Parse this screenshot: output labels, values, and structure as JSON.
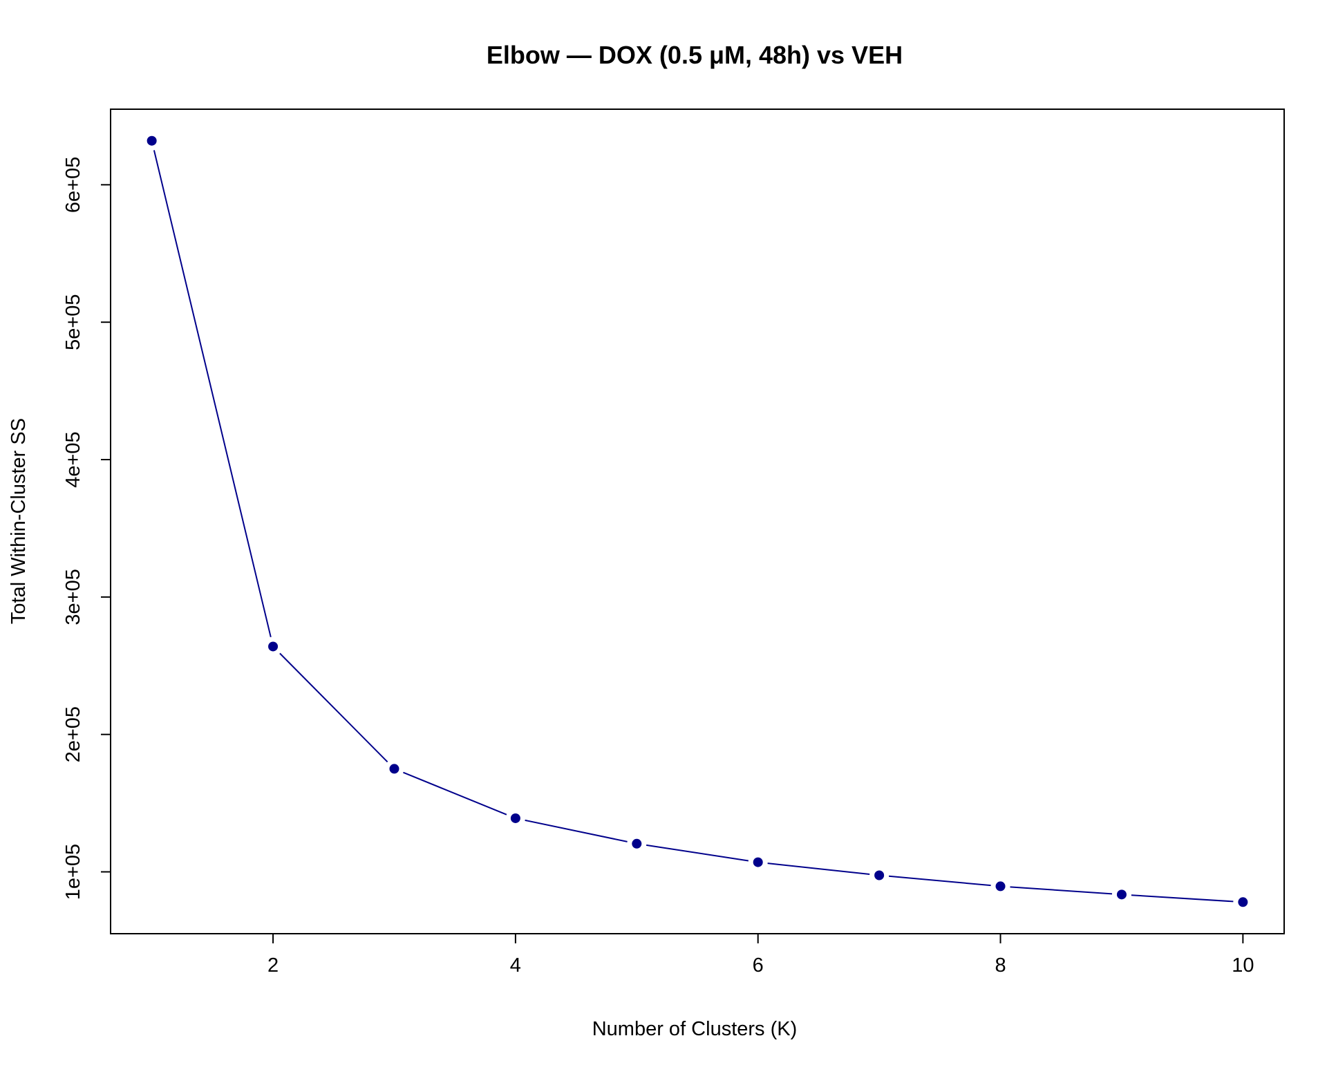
{
  "chart_data": {
    "type": "line",
    "title": "Elbow — DOX (0.5 μM, 48h) vs VEH",
    "xlabel": "Number of Clusters (K)",
    "ylabel": "Total Within-Cluster SS",
    "x": [
      1,
      2,
      3,
      4,
      5,
      6,
      7,
      8,
      9,
      10
    ],
    "series": [
      {
        "values": [
          632000,
          264000,
          175000,
          139000,
          120500,
          107000,
          97500,
          89500,
          83500,
          78000
        ]
      }
    ],
    "xlim": [
      0.66,
      10.34
    ],
    "ylim": [
      55000,
      655000
    ],
    "x_ticks": [
      2,
      4,
      6,
      8,
      10
    ],
    "x_tick_labels": [
      "2",
      "4",
      "6",
      "8",
      "10"
    ],
    "y_ticks": [
      100000,
      200000,
      300000,
      400000,
      500000,
      600000
    ],
    "y_tick_labels": [
      "1e+05",
      "2e+05",
      "3e+05",
      "4e+05",
      "5e+05",
      "6e+05"
    ],
    "grid": false,
    "legend": "none",
    "line_color": "#00008B",
    "marker_color": "#00008B"
  }
}
